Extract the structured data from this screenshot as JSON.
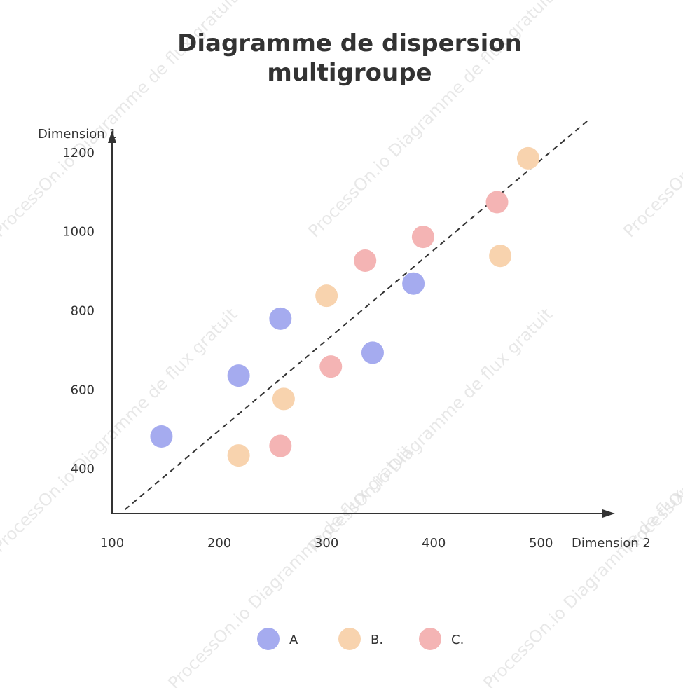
{
  "watermark_text": "ProcessOn.io Diagramme de flux gratuit",
  "chart_data": {
    "type": "scatter",
    "title": "Diagramme de dispersion multigroupe",
    "title_lines": [
      "Diagramme de dispersion",
      "multigroupe"
    ],
    "xlabel": "Dimension 2",
    "ylabel": "Dimension 1",
    "xlim": [
      100,
      545
    ],
    "ylim": [
      285,
      1245
    ],
    "xticks": [
      100,
      200,
      300,
      400,
      500
    ],
    "yticks": [
      400,
      600,
      800,
      1000,
      1200
    ],
    "grid": false,
    "legend_position": "bottom-center",
    "series": [
      {
        "name": "A",
        "color": "#a5abef",
        "points": [
          {
            "x": 146,
            "y": 480
          },
          {
            "x": 218,
            "y": 634
          },
          {
            "x": 257,
            "y": 778
          },
          {
            "x": 343,
            "y": 692
          },
          {
            "x": 381,
            "y": 867
          }
        ]
      },
      {
        "name": "B.",
        "color": "#f8d3ae",
        "points": [
          {
            "x": 218,
            "y": 432
          },
          {
            "x": 260,
            "y": 575
          },
          {
            "x": 300,
            "y": 836
          },
          {
            "x": 462,
            "y": 937
          },
          {
            "x": 488,
            "y": 1184
          }
        ]
      },
      {
        "name": "C.",
        "color": "#f4b4b4",
        "points": [
          {
            "x": 257,
            "y": 456
          },
          {
            "x": 304,
            "y": 657
          },
          {
            "x": 336,
            "y": 925
          },
          {
            "x": 390,
            "y": 985
          },
          {
            "x": 459,
            "y": 1073
          }
        ]
      }
    ],
    "trend_line": {
      "style": "dashed",
      "color": "#333333",
      "start": {
        "x": 112,
        "y": 295
      },
      "end": {
        "x": 543,
        "y": 1278
      }
    }
  }
}
